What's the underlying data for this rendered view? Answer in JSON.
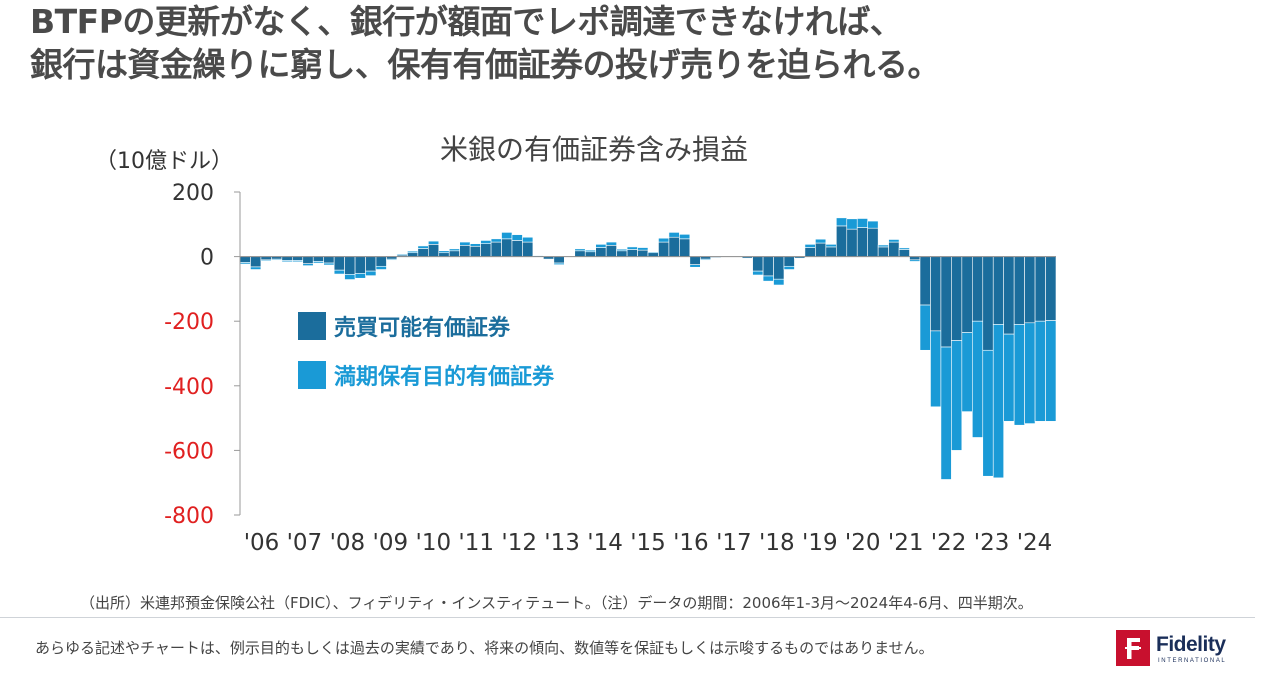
{
  "headline": {
    "line1": "BTFPの更新がなく、銀行が額面でレポ調達できなければ、",
    "line2": "銀行は資金繰りに窮し、保有有価証券の投げ売りを迫られる。"
  },
  "chart_data": {
    "type": "bar",
    "stacked": true,
    "title": "米銀の有価証券含み損益",
    "unit_label": "（10億ドル）",
    "ylim": [
      -800,
      200
    ],
    "yticks": [
      200,
      0,
      -200,
      -400,
      -600,
      -800
    ],
    "ytick_labels": [
      "200",
      "0",
      "-200",
      "-400",
      "-600",
      "-800"
    ],
    "negative_tick_color": "#e02020",
    "xtick_labels": [
      "'06",
      "'07",
      "'08",
      "'09",
      "'10",
      "'11",
      "'12",
      "'13",
      "'14",
      "'15",
      "'16",
      "'17",
      "'18",
      "'19",
      "'20",
      "'21",
      "'22",
      "'23",
      "'24"
    ],
    "legend_position": "left-center",
    "series": [
      {
        "name": "売買可能有価証券",
        "color": "#1b6d9c",
        "values": [
          -18,
          -32,
          -10,
          -8,
          -12,
          -12,
          -22,
          -15,
          -20,
          -42,
          -55,
          -52,
          -45,
          -30,
          -8,
          5,
          12,
          25,
          38,
          12,
          18,
          35,
          32,
          40,
          45,
          55,
          50,
          45,
          0,
          -8,
          -20,
          -2,
          18,
          15,
          28,
          35,
          18,
          22,
          20,
          12,
          45,
          60,
          55,
          -25,
          -8,
          -3,
          0,
          0,
          -5,
          -45,
          -60,
          -70,
          -30,
          -5,
          28,
          42,
          30,
          95,
          85,
          90,
          88,
          30,
          45,
          22,
          -10,
          -150,
          -230,
          -280,
          -260,
          -235,
          -200,
          -290,
          -210,
          -240,
          -210,
          -205,
          -200,
          -198
        ]
      },
      {
        "name": "満期保有目的有価証券",
        "color": "#1a9ad6",
        "values": [
          -5,
          -8,
          -3,
          -3,
          -4,
          -4,
          -6,
          -5,
          -6,
          -12,
          -16,
          -15,
          -14,
          -10,
          -3,
          3,
          5,
          8,
          10,
          6,
          6,
          10,
          8,
          10,
          10,
          20,
          18,
          15,
          3,
          -2,
          -5,
          0,
          6,
          5,
          10,
          10,
          5,
          8,
          8,
          3,
          12,
          15,
          14,
          -8,
          -3,
          -2,
          -1,
          0,
          -2,
          -12,
          -16,
          -18,
          -10,
          -2,
          10,
          12,
          8,
          25,
          32,
          28,
          22,
          6,
          8,
          5,
          -5,
          -140,
          -235,
          -410,
          -340,
          -245,
          -360,
          -390,
          -475,
          -270,
          -312,
          -312,
          -310,
          -312
        ]
      }
    ]
  },
  "source_note": "（出所）米連邦預金保険公社（FDIC）、フィデリティ・インスティテュート。（注）データの期間：2006年1-3月～2024年4-6月、四半期次。",
  "disclaimer": "あらゆる記述やチャートは、例示目的もしくは過去の実績であり、将来の傾向、数値等を保証もしくは示唆するものではありません。",
  "logo": {
    "name": "Fidelity",
    "sub": "INTERNATIONAL",
    "icon": "fidelity-f-icon",
    "color": "#c8102e"
  }
}
